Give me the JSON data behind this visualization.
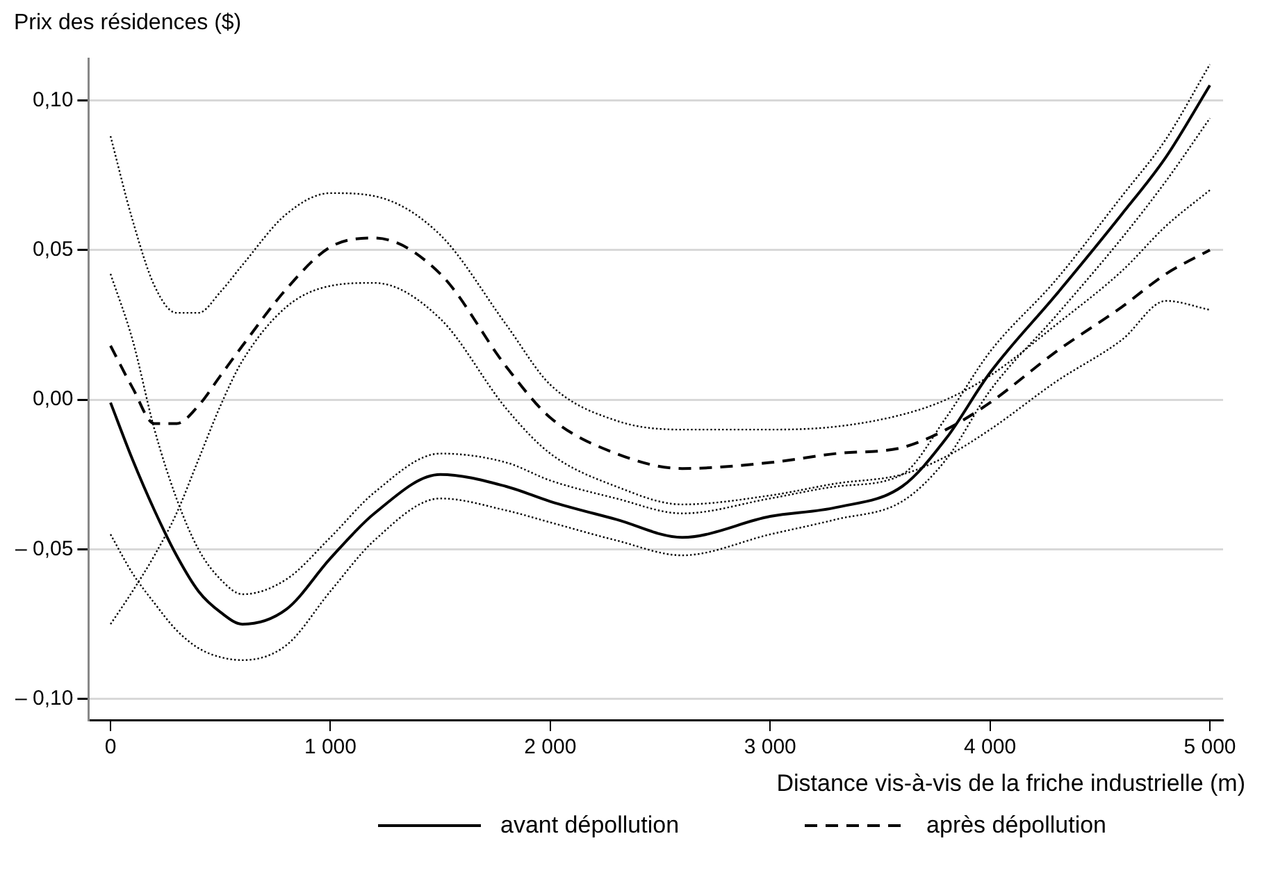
{
  "chart_data": {
    "type": "line",
    "ylabel": "Prix des résidences ($)",
    "xlabel": "Distance vis-à-vis de la friche industrielle (m)",
    "xlim": [
      -100,
      5060
    ],
    "ylim": [
      -0.107,
      0.114
    ],
    "xticks": [
      0,
      {
        "value": 1000,
        "label": "1 000"
      },
      {
        "value": 2000,
        "label": "2 000"
      },
      {
        "value": 3000,
        "label": "3 000"
      },
      {
        "value": 4000,
        "label": "4 000"
      },
      {
        "value": 5000,
        "label": "5 000"
      }
    ],
    "yticks": [
      {
        "value": -0.1,
        "label": "– 0,10"
      },
      {
        "value": -0.05,
        "label": "– 0,05"
      },
      {
        "value": 0,
        "label": "0,00"
      },
      {
        "value": 0.05,
        "label": "0,05"
      },
      {
        "value": 0.1,
        "label": "0,10"
      }
    ],
    "grid": "y",
    "legend": "bottom",
    "marker": "none",
    "x": [
      0,
      100,
      200,
      300,
      400,
      500,
      600,
      800,
      1000,
      1200,
      1500,
      1800,
      2000,
      2300,
      2600,
      3000,
      3300,
      3600,
      3800,
      4000,
      4300,
      4600,
      4800,
      5000
    ],
    "series": [
      {
        "name": "avant dépollution",
        "color": "#000000",
        "line_style": "solid",
        "values": [
          -0.001,
          -0.02,
          -0.037,
          -0.052,
          -0.064,
          -0.071,
          -0.075,
          -0.07,
          -0.053,
          -0.038,
          -0.025,
          -0.029,
          -0.034,
          -0.04,
          -0.046,
          -0.039,
          -0.036,
          -0.029,
          -0.013,
          0.009,
          0.035,
          0.062,
          0.081,
          0.105
        ]
      },
      {
        "name": "après dépollution",
        "color": "#000000",
        "line_style": "dashed",
        "values": [
          0.018,
          0.004,
          -0.008,
          -0.008,
          -0.002,
          0.008,
          0.018,
          0.037,
          0.051,
          0.054,
          0.042,
          0.011,
          -0.006,
          -0.018,
          -0.023,
          -0.021,
          -0.018,
          -0.016,
          -0.01,
          -0.001,
          0.016,
          0.031,
          0.042,
          0.05
        ]
      },
      {
        "color": "#000000",
        "line_style": "dotted",
        "values": [
          0.042,
          0.02,
          -0.01,
          -0.033,
          -0.05,
          -0.06,
          -0.065,
          -0.06,
          -0.046,
          -0.031,
          -0.018,
          -0.021,
          -0.027,
          -0.033,
          -0.038,
          -0.033,
          -0.029,
          -0.025,
          -0.006,
          0.016,
          0.04,
          0.068,
          0.087,
          0.112
        ]
      },
      {
        "color": "#000000",
        "line_style": "dotted",
        "values": [
          -0.045,
          -0.058,
          -0.068,
          -0.077,
          -0.083,
          -0.086,
          -0.087,
          -0.082,
          -0.064,
          -0.047,
          -0.033,
          -0.037,
          -0.041,
          -0.047,
          -0.052,
          -0.045,
          -0.04,
          -0.034,
          -0.02,
          0.003,
          0.028,
          0.054,
          0.073,
          0.094
        ]
      },
      {
        "color": "#000000",
        "line_style": "dotted",
        "values": [
          0.088,
          0.06,
          0.038,
          0.029,
          0.029,
          0.036,
          0.045,
          0.062,
          0.069,
          0.068,
          0.055,
          0.025,
          0.005,
          -0.007,
          -0.01,
          -0.01,
          -0.009,
          -0.005,
          0,
          0.008,
          0.025,
          0.043,
          0.058,
          0.07
        ]
      },
      {
        "color": "#000000",
        "line_style": "dotted",
        "values": [
          -0.075,
          -0.064,
          -0.052,
          -0.038,
          -0.02,
          -0.002,
          0.013,
          0.031,
          0.038,
          0.039,
          0.027,
          -0.003,
          -0.018,
          -0.029,
          -0.035,
          -0.032,
          -0.028,
          -0.025,
          -0.019,
          -0.01,
          0.006,
          0.02,
          0.033,
          0.03
        ]
      }
    ]
  }
}
